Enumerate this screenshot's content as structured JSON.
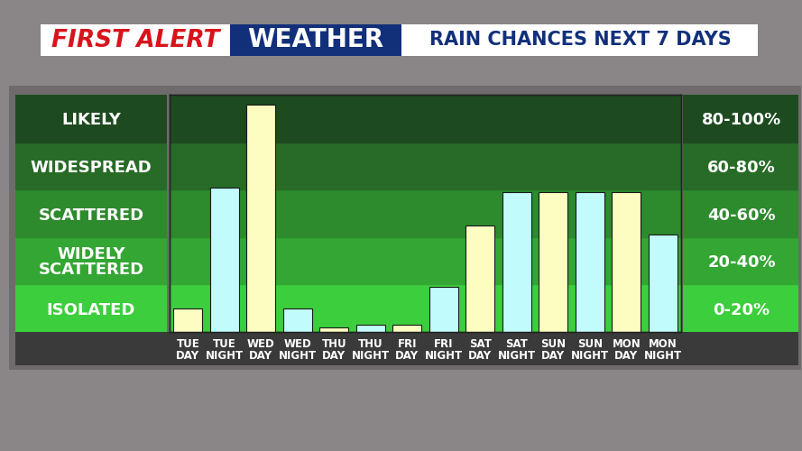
{
  "chart_data": {
    "type": "bar",
    "title": "RAIN CHANCES NEXT 7 DAYS",
    "annotations": [
      "FIRST ALERT",
      "WEATHER"
    ],
    "categories": [
      "TUE\nDAY",
      "TUE\nNIGHT",
      "WED\nDAY",
      "WED\nNIGHT",
      "THU\nDAY",
      "THU\nNIGHT",
      "FRI\nDAY",
      "FRI\nNIGHT",
      "SAT\nDAY",
      "SAT\nNIGHT",
      "SUN\nDAY",
      "SUN\nNIGHT",
      "MON\nDAY",
      "MON\nNIGHT"
    ],
    "values": [
      10,
      61,
      96,
      10,
      2,
      3,
      3,
      19,
      45,
      59,
      59,
      59,
      59,
      41
    ],
    "colors": [
      "#fdfdc2",
      "#c2fbfb",
      "#fdfdc2",
      "#c2fbfb",
      "#fdfdc2",
      "#c2fbfb",
      "#fdfdc2",
      "#c2fbfb",
      "#fdfdc2",
      "#c2fbfb",
      "#fdfdc2",
      "#c2fbfb",
      "#fdfdc2",
      "#c2fbfb"
    ],
    "ylim": [
      0,
      100
    ],
    "yticks": [
      {
        "value": 10,
        "label": "ISOLATED"
      },
      {
        "value": 30,
        "label": "WIDELY\nSCATTERED"
      },
      {
        "value": 50,
        "label": "SCATTERED"
      },
      {
        "value": 70,
        "label": "WIDESPREAD"
      },
      {
        "value": 90,
        "label": "LIKELY"
      }
    ],
    "y2lim": [
      0,
      100
    ],
    "y2ticks": [
      {
        "value": 10,
        "label": "0-20%"
      },
      {
        "value": 30,
        "label": "20-40%"
      },
      {
        "value": 50,
        "label": "40-60%"
      },
      {
        "value": 70,
        "label": "60-80%"
      },
      {
        "value": 90,
        "label": "80-100%"
      }
    ],
    "bands": [
      {
        "from": 0,
        "to": 20,
        "color": "#3cce3c"
      },
      {
        "from": 20,
        "to": 40,
        "color": "#33a633"
      },
      {
        "from": 40,
        "to": 60,
        "color": "#2d8a2d"
      },
      {
        "from": 60,
        "to": 80,
        "color": "#276b27"
      },
      {
        "from": 80,
        "to": 100,
        "color": "#1e4a20"
      }
    ],
    "tick_labels": true
  }
}
